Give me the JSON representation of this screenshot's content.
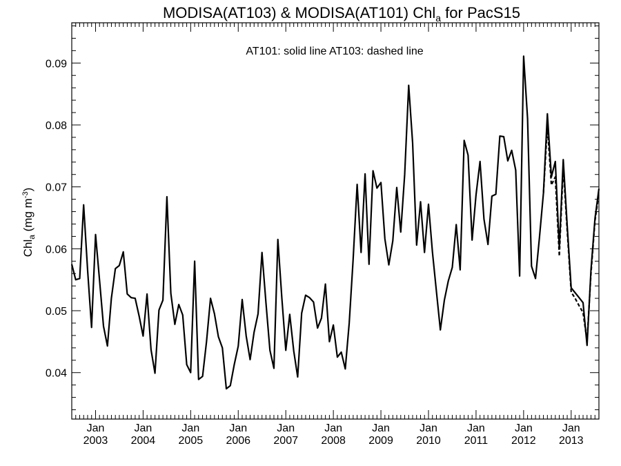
{
  "chart_data": {
    "type": "line",
    "title_main": "MODISA(AT103) & MODISA(AT101)  Chl",
    "title_sub": "a",
    "title_tail": " for PacS15",
    "annotation": "AT101: solid line   AT103: dashed line",
    "ylabel_main": "Chl",
    "ylabel_sub": "a",
    "ylabel_unit": " (mg m",
    "ylabel_exp": "-3",
    "ylabel_close": ")",
    "ylim": [
      0.0325,
      0.0965
    ],
    "xlim": [
      "2002-07",
      "2013-08"
    ],
    "y_ticks": [
      {
        "value": 0.04,
        "label": "0.04"
      },
      {
        "value": 0.05,
        "label": "0.05"
      },
      {
        "value": 0.06,
        "label": "0.06"
      },
      {
        "value": 0.07,
        "label": "0.07"
      },
      {
        "value": 0.08,
        "label": "0.08"
      },
      {
        "value": 0.09,
        "label": "0.09"
      }
    ],
    "x_ticks": [
      {
        "date": "2003-01",
        "month": "Jan",
        "year": "2003"
      },
      {
        "date": "2004-01",
        "month": "Jan",
        "year": "2004"
      },
      {
        "date": "2005-01",
        "month": "Jan",
        "year": "2005"
      },
      {
        "date": "2006-01",
        "month": "Jan",
        "year": "2006"
      },
      {
        "date": "2007-01",
        "month": "Jan",
        "year": "2007"
      },
      {
        "date": "2008-01",
        "month": "Jan",
        "year": "2008"
      },
      {
        "date": "2009-01",
        "month": "Jan",
        "year": "2009"
      },
      {
        "date": "2010-01",
        "month": "Jan",
        "year": "2010"
      },
      {
        "date": "2011-01",
        "month": "Jan",
        "year": "2011"
      },
      {
        "date": "2012-01",
        "month": "Jan",
        "year": "2012"
      },
      {
        "date": "2013-01",
        "month": "Jan",
        "year": "2013"
      }
    ],
    "series": [
      {
        "style": "solid",
        "dates": [
          "2002-07",
          "2002-08",
          "2002-09",
          "2002-10",
          "2002-11",
          "2002-12",
          "2003-01",
          "2003-02",
          "2003-03",
          "2003-04",
          "2003-05",
          "2003-06",
          "2003-07",
          "2003-08",
          "2003-09",
          "2003-10",
          "2003-11",
          "2003-12",
          "2004-01",
          "2004-02",
          "2004-03",
          "2004-04",
          "2004-05",
          "2004-06",
          "2004-07",
          "2004-08",
          "2004-09",
          "2004-10",
          "2004-11",
          "2004-12",
          "2005-01",
          "2005-02",
          "2005-03",
          "2005-04",
          "2005-05",
          "2005-06",
          "2005-07",
          "2005-08",
          "2005-09",
          "2005-10",
          "2005-11",
          "2005-12",
          "2006-01",
          "2006-02",
          "2006-03",
          "2006-04",
          "2006-05",
          "2006-06",
          "2006-07",
          "2006-08",
          "2006-09",
          "2006-10",
          "2006-11",
          "2006-12",
          "2007-01",
          "2007-02",
          "2007-03",
          "2007-04",
          "2007-05",
          "2007-06",
          "2007-07",
          "2007-08",
          "2007-09",
          "2007-10",
          "2007-11",
          "2007-12",
          "2008-01",
          "2008-02",
          "2008-03",
          "2008-04",
          "2008-05",
          "2008-06",
          "2008-07",
          "2008-08",
          "2008-09",
          "2008-10",
          "2008-11",
          "2008-12",
          "2009-01",
          "2009-02",
          "2009-03",
          "2009-04",
          "2009-05",
          "2009-06",
          "2009-07",
          "2009-08",
          "2009-09",
          "2009-10",
          "2009-11",
          "2009-12",
          "2010-01",
          "2010-02",
          "2010-03",
          "2010-04",
          "2010-05",
          "2010-06",
          "2010-07",
          "2010-08",
          "2010-09",
          "2010-10",
          "2010-11",
          "2010-12",
          "2011-01",
          "2011-02",
          "2011-03",
          "2011-04",
          "2011-05",
          "2011-06",
          "2011-07",
          "2011-08",
          "2011-09",
          "2011-10",
          "2011-11",
          "2011-12",
          "2012-01",
          "2012-02",
          "2012-03",
          "2012-04",
          "2012-05",
          "2012-06",
          "2012-07",
          "2012-08",
          "2012-09",
          "2012-10",
          "2012-11",
          "2012-12",
          "2013-01",
          "2013-02",
          "2013-03",
          "2013-04",
          "2013-05",
          "2013-06",
          "2013-07",
          "2013-08"
        ],
        "values": [
          0.0575,
          0.055,
          0.0552,
          0.0671,
          0.0565,
          0.0473,
          0.0623,
          0.055,
          0.0475,
          0.0443,
          0.052,
          0.0568,
          0.0573,
          0.0595,
          0.0527,
          0.0521,
          0.052,
          0.0491,
          0.0459,
          0.0527,
          0.0437,
          0.0399,
          0.0501,
          0.0517,
          0.0684,
          0.0528,
          0.0478,
          0.051,
          0.0493,
          0.0413,
          0.04,
          0.058,
          0.0389,
          0.0394,
          0.045,
          0.052,
          0.0495,
          0.0458,
          0.044,
          0.0374,
          0.0379,
          0.0413,
          0.0443,
          0.0518,
          0.0459,
          0.0421,
          0.0465,
          0.0495,
          0.0594,
          0.0512,
          0.0436,
          0.0407,
          0.0615,
          0.052,
          0.0436,
          0.0494,
          0.0435,
          0.0393,
          0.0496,
          0.0525,
          0.0521,
          0.0514,
          0.0472,
          0.0488,
          0.0543,
          0.045,
          0.0477,
          0.0425,
          0.0433,
          0.0406,
          0.048,
          0.0583,
          0.0704,
          0.0594,
          0.0721,
          0.0575,
          0.0726,
          0.0698,
          0.0707,
          0.0616,
          0.0574,
          0.0613,
          0.0699,
          0.0627,
          0.072,
          0.0864,
          0.0771,
          0.0606,
          0.0676,
          0.0594,
          0.0672,
          0.0595,
          0.0531,
          0.0469,
          0.0517,
          0.0548,
          0.057,
          0.0639,
          0.0566,
          0.0775,
          0.0751,
          0.0614,
          0.0687,
          0.0741,
          0.0648,
          0.0607,
          0.0685,
          0.0688,
          0.0782,
          0.0781,
          0.0742,
          0.0759,
          0.0727,
          0.0556,
          0.0911,
          0.081,
          0.0572,
          0.0552,
          0.0618,
          0.069,
          0.0818,
          0.0716,
          0.0741,
          0.0601,
          0.0744,
          0.0638,
          0.0537,
          0.0529,
          0.0521,
          0.0513,
          0.0444,
          0.0566,
          0.0649,
          0.0697
        ]
      },
      {
        "style": "dashed",
        "dates": [
          "2012-06",
          "2012-07",
          "2012-08",
          "2012-09",
          "2012-10",
          "2012-11",
          "2012-12",
          "2013-01",
          "2013-02",
          "2013-03",
          "2013-04",
          "2013-05",
          "2013-06",
          "2013-07",
          "2013-08"
        ],
        "values": [
          0.069,
          0.0798,
          0.0703,
          0.0716,
          0.0588,
          0.0732,
          0.063,
          0.053,
          0.052,
          0.0508,
          0.0497,
          0.0451,
          0.056,
          0.0645,
          0.069
        ]
      }
    ]
  }
}
